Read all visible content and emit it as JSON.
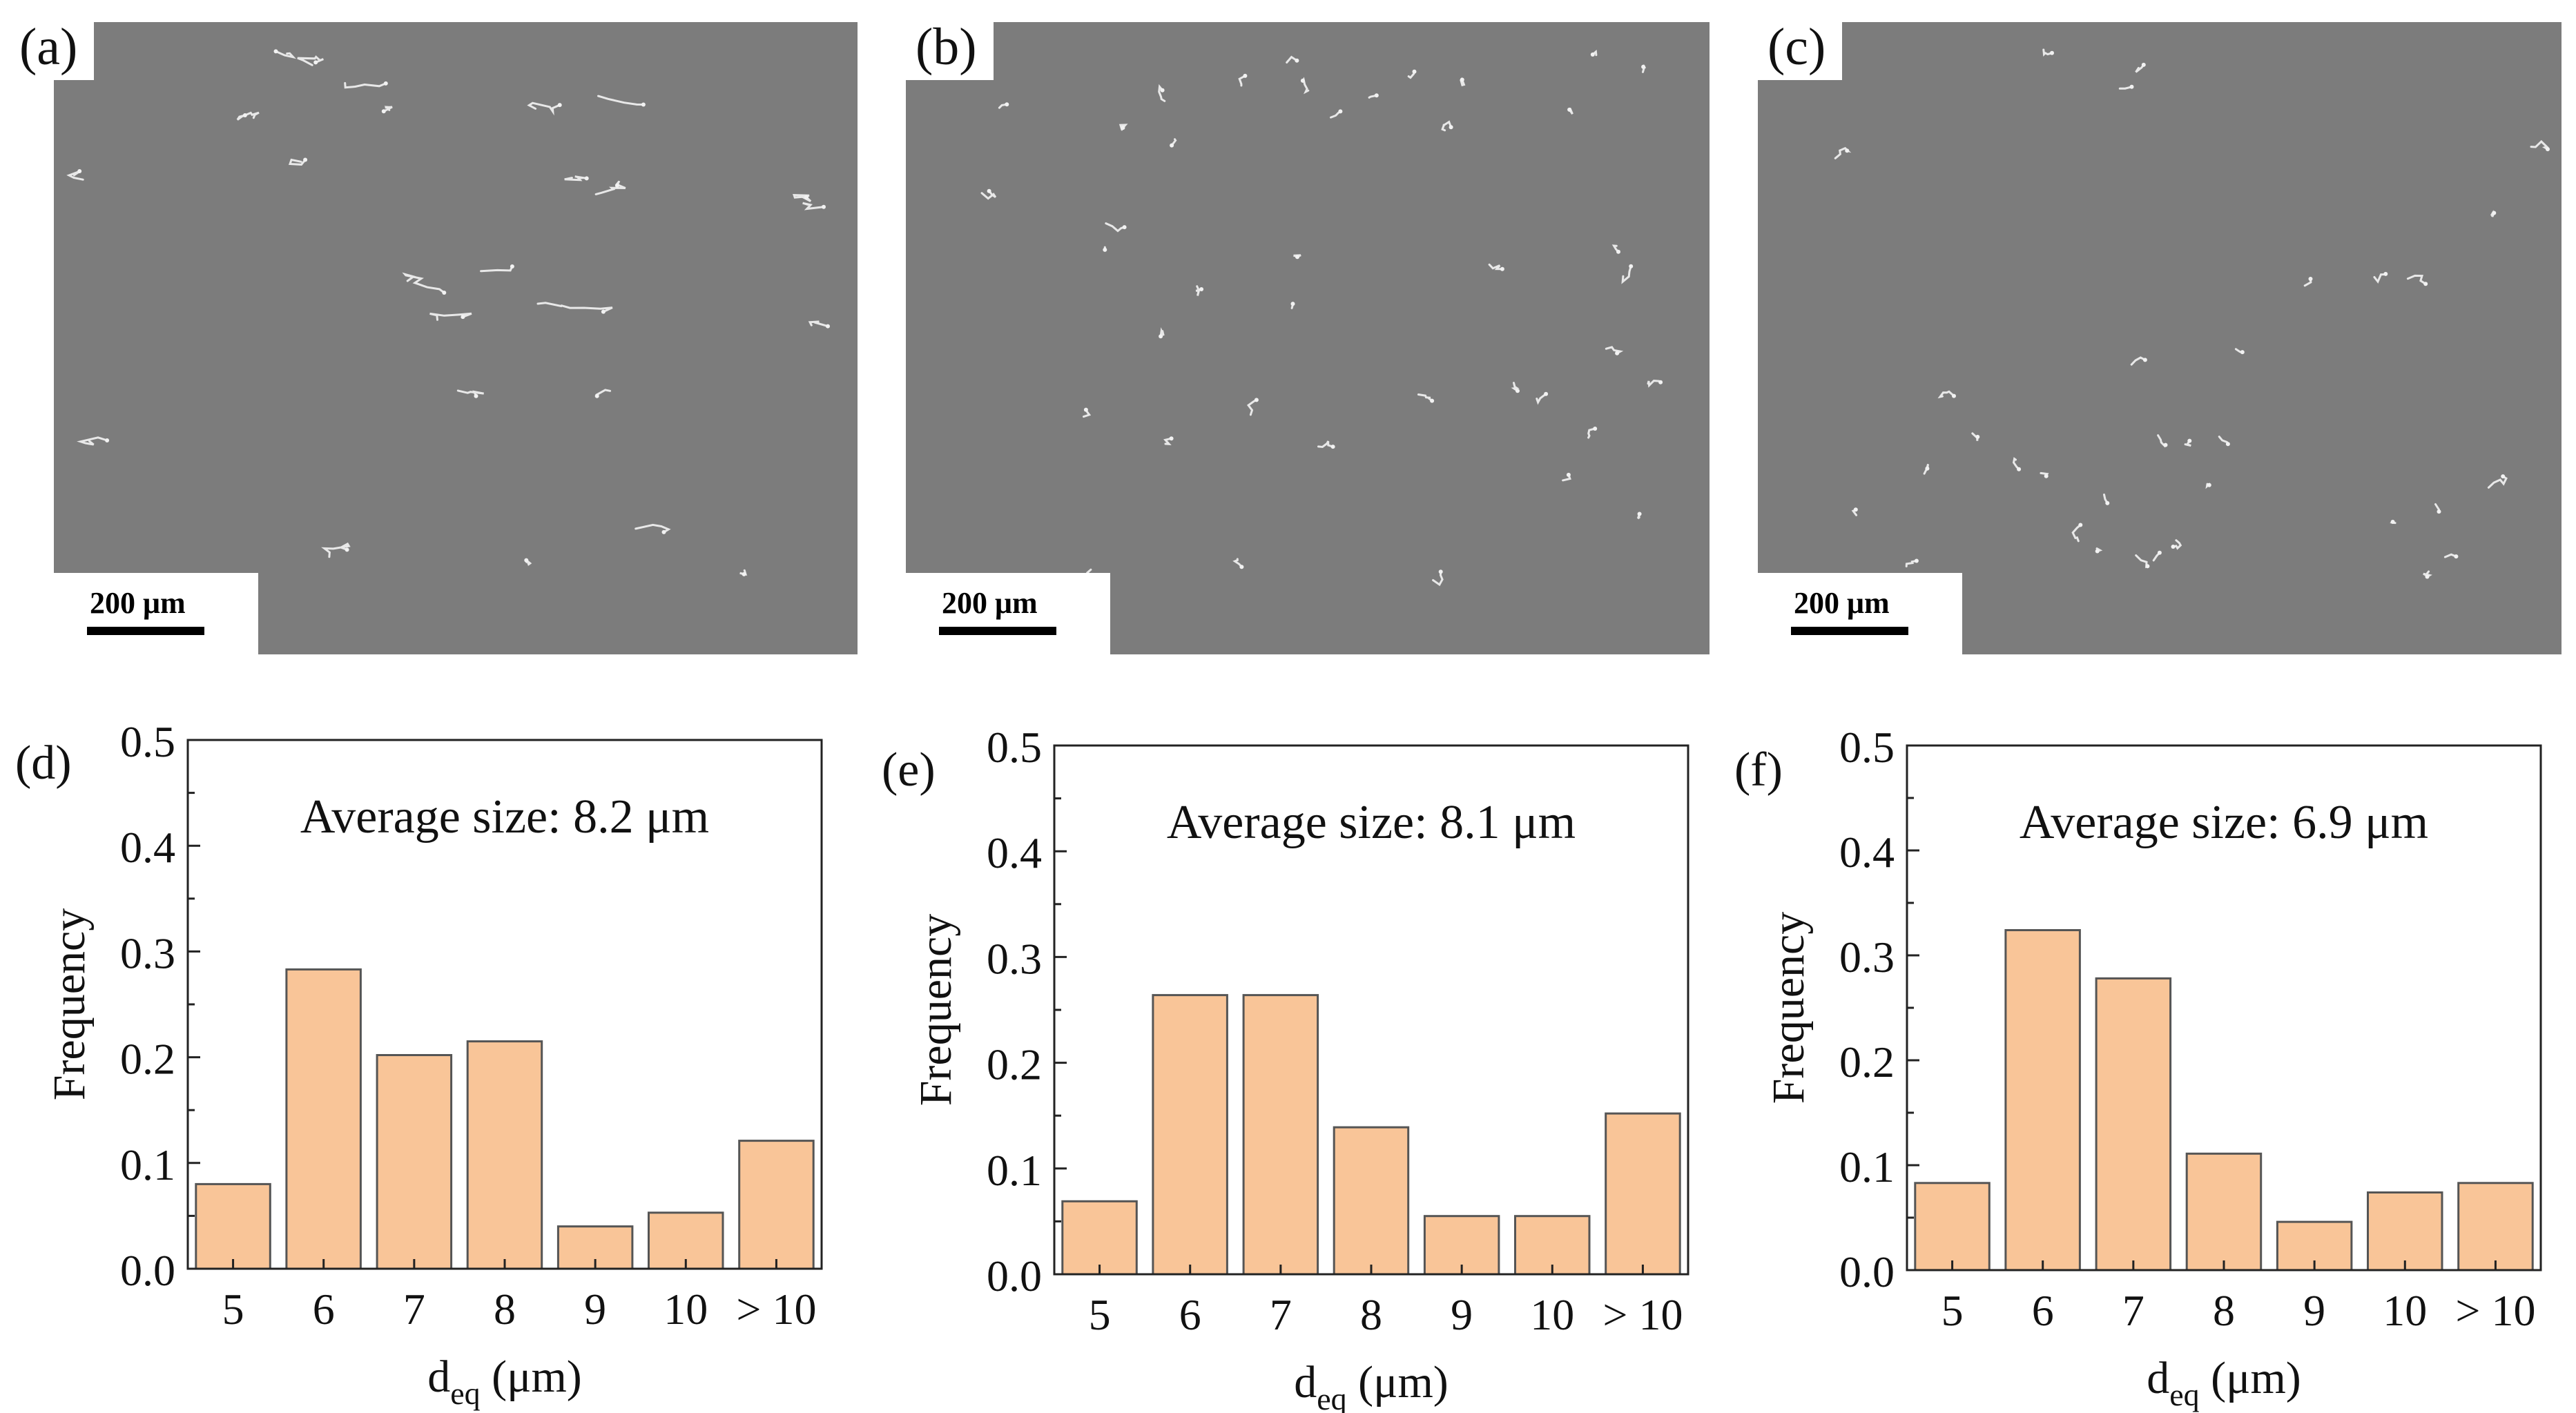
{
  "micrographs": [
    {
      "label": "(a)",
      "scale": "200 μm"
    },
    {
      "label": "(b)",
      "scale": "200 μm"
    },
    {
      "label": "(c)",
      "scale": "200 μm"
    }
  ],
  "chart_data": [
    {
      "type": "bar",
      "panel_label": "(d)",
      "title": "Average size: 8.2 μm",
      "categories": [
        "5",
        "6",
        "7",
        "8",
        "9",
        "10",
        "> 10"
      ],
      "values": [
        0.08,
        0.283,
        0.202,
        0.215,
        0.04,
        0.053,
        0.121
      ],
      "xlabel": "d",
      "xlabel_sub": "eq",
      "xlabel_unit": " (μm)",
      "ylabel": "Frequency",
      "ylim": [
        0,
        0.5
      ],
      "yticks": [
        "0.0",
        "0.1",
        "0.2",
        "0.3",
        "0.4",
        "0.5"
      ],
      "bar_color": "#f9c598",
      "bar_edge": "#555555"
    },
    {
      "type": "bar",
      "panel_label": "(e)",
      "title": "Average size: 8.1 μm",
      "categories": [
        "5",
        "6",
        "7",
        "8",
        "9",
        "10",
        "> 10"
      ],
      "values": [
        0.069,
        0.264,
        0.264,
        0.139,
        0.055,
        0.055,
        0.152
      ],
      "xlabel": "d",
      "xlabel_sub": "eq",
      "xlabel_unit": " (μm)",
      "ylabel": "Frequency",
      "ylim": [
        0,
        0.5
      ],
      "yticks": [
        "0.0",
        "0.1",
        "0.2",
        "0.3",
        "0.4",
        "0.5"
      ],
      "bar_color": "#f9c598",
      "bar_edge": "#555555"
    },
    {
      "type": "bar",
      "panel_label": "(f)",
      "title": "Average size: 6.9 μm",
      "categories": [
        "5",
        "6",
        "7",
        "8",
        "9",
        "10",
        "> 10"
      ],
      "values": [
        0.083,
        0.324,
        0.278,
        0.111,
        0.046,
        0.074,
        0.083
      ],
      "xlabel": "d",
      "xlabel_sub": "eq",
      "xlabel_unit": " (μm)",
      "ylabel": "Frequency",
      "ylim": [
        0,
        0.5
      ],
      "yticks": [
        "0.0",
        "0.1",
        "0.2",
        "0.3",
        "0.4",
        "0.5"
      ],
      "bar_color": "#f9c598",
      "bar_edge": "#555555"
    }
  ]
}
